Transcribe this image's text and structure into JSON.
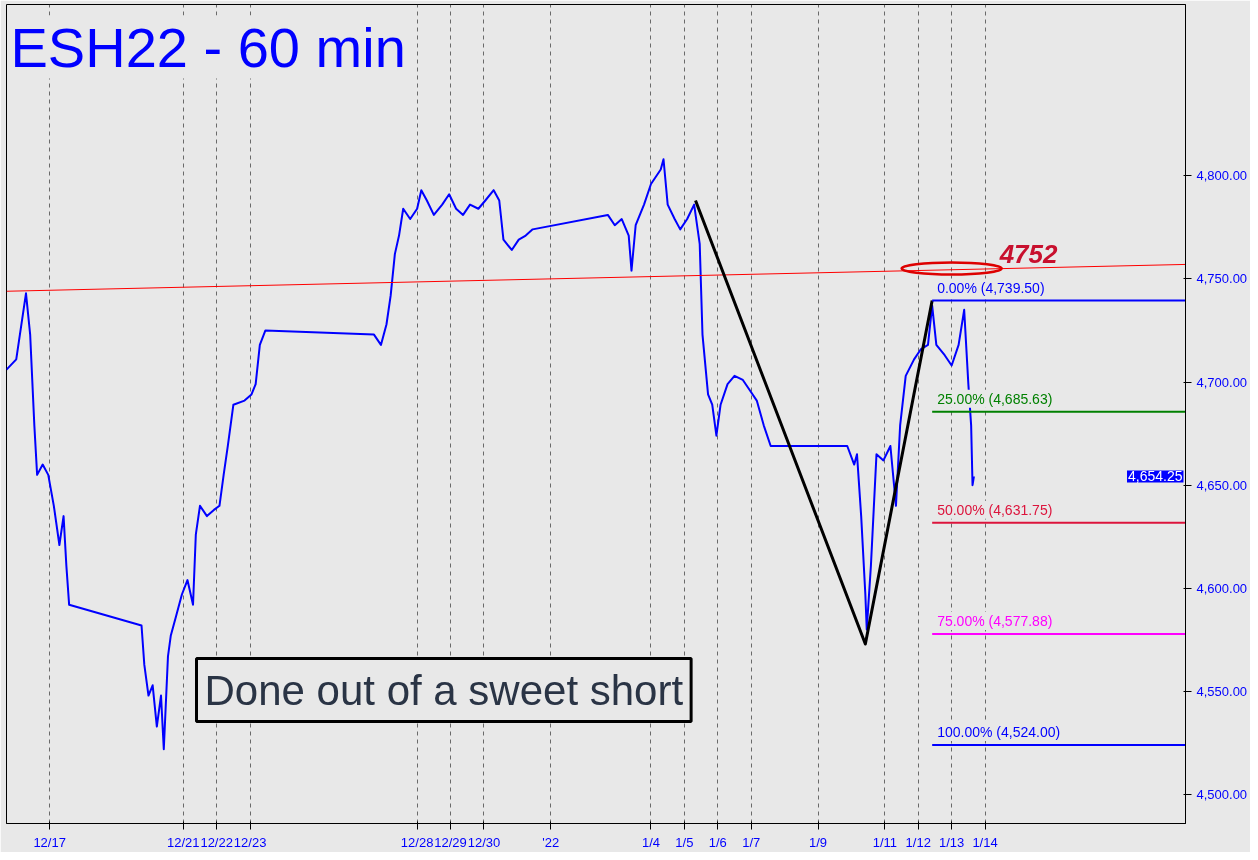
{
  "chart_data": {
    "type": "line",
    "title": "ESH22 - 60 min",
    "xlim": [
      "2021-12-15T17:00",
      "2022-01-20T00:00"
    ],
    "ylim": [
      4486,
      4883
    ],
    "xticks": [
      {
        "value": "2021-12-17",
        "label": "12/17"
      },
      {
        "value": "2021-12-21",
        "label": "12/21"
      },
      {
        "value": "2021-12-22",
        "label": "12/22"
      },
      {
        "value": "2021-12-23",
        "label": "12/23"
      },
      {
        "value": "2021-12-28",
        "label": "12/28"
      },
      {
        "value": "2021-12-29",
        "label": "12/29"
      },
      {
        "value": "2021-12-30",
        "label": "12/30"
      },
      {
        "value": "2022-01-01",
        "label": "'22"
      },
      {
        "value": "2022-01-04",
        "label": "1/4"
      },
      {
        "value": "2022-01-05",
        "label": "1/5"
      },
      {
        "value": "2022-01-06",
        "label": "1/6"
      },
      {
        "value": "2022-01-07",
        "label": "1/7"
      },
      {
        "value": "2022-01-09",
        "label": "1/9"
      },
      {
        "value": "2022-01-11",
        "label": "1/11"
      },
      {
        "value": "2022-01-12",
        "label": "1/12"
      },
      {
        "value": "2022-01-13",
        "label": "1/13"
      },
      {
        "value": "2022-01-14",
        "label": "1/14"
      }
    ],
    "yticks": [
      {
        "value": 4500,
        "label": "4,500.00"
      },
      {
        "value": 4550,
        "label": "4,550.00"
      },
      {
        "value": 4600,
        "label": "4,600.00"
      },
      {
        "value": 4650,
        "label": "4,650.00"
      },
      {
        "value": 4700,
        "label": "4,700.00"
      },
      {
        "value": 4750,
        "label": "4,750.00"
      },
      {
        "value": 4800,
        "label": "4,800.00"
      }
    ],
    "grid": "x",
    "line_style": "solid",
    "marker": "none",
    "series": [
      {
        "color": "#0000ff",
        "x": [
          "2021-12-15T17:00",
          "2021-12-16T00:00",
          "2021-12-16T07:00",
          "2021-12-16T10:00",
          "2021-12-16T13:00",
          "2021-12-16T15:00",
          "2021-12-16T19:00",
          "2021-12-16T23:00",
          "2021-12-17T03:00",
          "2021-12-17T07:00",
          "2021-12-17T10:00",
          "2021-12-17T12:00",
          "2021-12-17T14:00",
          "2021-12-19T18:00",
          "2021-12-19T20:00",
          "2021-12-19T23:00",
          "2021-12-20T02:00",
          "2021-12-20T05:00",
          "2021-12-20T08:00",
          "2021-12-20T10:00",
          "2021-12-20T13:00",
          "2021-12-20T15:00",
          "2021-12-20T19:00",
          "2021-12-20T23:00",
          "2021-12-21T03:00",
          "2021-12-21T07:00",
          "2021-12-21T09:00",
          "2021-12-21T12:00",
          "2021-12-21T17:00",
          "2021-12-21T22:00",
          "2021-12-22T02:00",
          "2021-12-22T05:00",
          "2021-12-22T08:00",
          "2021-12-22T12:00",
          "2021-12-22T20:00",
          "2021-12-23T01:00",
          "2021-12-23T04:00",
          "2021-12-23T07:00",
          "2021-12-23T11:00",
          "2021-12-26T17:00",
          "2021-12-26T22:00",
          "2021-12-27T02:00",
          "2021-12-27T05:00",
          "2021-12-27T08:00",
          "2021-12-27T11:00",
          "2021-12-27T14:00",
          "2021-12-27T19:00",
          "2021-12-28T00:00",
          "2021-12-28T03:00",
          "2021-12-28T07:00",
          "2021-12-28T12:00",
          "2021-12-28T18:00",
          "2021-12-28T23:00",
          "2021-12-29T04:00",
          "2021-12-29T09:00",
          "2021-12-29T14:00",
          "2021-12-29T20:00",
          "2021-12-30T01:00",
          "2021-12-30T07:00",
          "2021-12-30T11:00",
          "2021-12-30T14:00",
          "2021-12-30T20:00",
          "2021-12-31T01:00",
          "2021-12-31T06:00",
          "2021-12-31T11:00",
          "2022-01-02T17:00",
          "2022-01-02T22:00",
          "2022-01-03T03:00",
          "2022-01-03T08:00",
          "2022-01-03T10:00",
          "2022-01-03T13:00",
          "2022-01-03T19:00",
          "2022-01-04T00:00",
          "2022-01-04T07:00",
          "2022-01-04T09:00",
          "2022-01-04T12:00",
          "2022-01-04T17:00",
          "2022-01-04T21:00",
          "2022-01-05T02:00",
          "2022-01-05T07:00",
          "2022-01-05T11:00",
          "2022-01-05T13:00",
          "2022-01-05T17:00",
          "2022-01-05T20:00",
          "2022-01-05T23:00",
          "2022-01-06T02:00",
          "2022-01-06T07:00",
          "2022-01-06T12:00",
          "2022-01-06T18:00",
          "2022-01-06T23:00",
          "2022-01-07T04:00",
          "2022-01-07T09:00",
          "2022-01-07T14:00",
          "2022-01-09T21:00",
          "2022-01-10T02:00",
          "2022-01-10T04:00",
          "2022-01-10T07:00",
          "2022-01-10T10:00",
          "2022-01-10T11:00",
          "2022-01-10T14:00",
          "2022-01-10T18:00",
          "2022-01-10T23:00",
          "2022-01-11T04:00",
          "2022-01-11T08:00",
          "2022-01-11T11:00",
          "2022-01-11T15:00",
          "2022-01-11T21:00",
          "2022-01-12T02:00",
          "2022-01-12T07:00",
          "2022-01-12T10:00",
          "2022-01-12T13:00",
          "2022-01-12T19:00",
          "2022-01-13T00:00",
          "2022-01-13T05:00",
          "2022-01-13T09:00",
          "2022-01-13T12:00",
          "2022-01-13T14:00",
          "2022-01-13T15:00",
          "2022-01-13T16:00"
        ],
        "values": [
          4706,
          4711,
          4743,
          4723,
          4679,
          4655,
          4660,
          4655,
          4640,
          4621,
          4635,
          4611,
          4592,
          4582,
          4563,
          4548,
          4553,
          4533,
          4548,
          4522,
          4567,
          4577,
          4587,
          4597,
          4604,
          4592,
          4626,
          4640,
          4635,
          4638,
          4640,
          4655,
          4669,
          4689,
          4691,
          4694,
          4699,
          4718,
          4725,
          4723,
          4718,
          4728,
          4742,
          4762,
          4771,
          4784,
          4779,
          4784,
          4793,
          4788,
          4781,
          4786,
          4791,
          4784,
          4781,
          4786,
          4784,
          4788,
          4793,
          4788,
          4769,
          4764,
          4769,
          4771,
          4774,
          4781,
          4776,
          4779,
          4771,
          4754,
          4776,
          4786,
          4796,
          4803,
          4808,
          4786,
          4779,
          4774,
          4779,
          4786,
          4767,
          4723,
          4694,
          4689,
          4674,
          4689,
          4699,
          4703,
          4701,
          4696,
          4691,
          4679,
          4669,
          4669,
          4660,
          4665,
          4635,
          4597,
          4580,
          4611,
          4665,
          4662,
          4669,
          4640,
          4679,
          4703,
          4711,
          4716,
          4718,
          4737,
          4718,
          4713,
          4708,
          4718,
          4735,
          4699,
          4679,
          4650,
          4654.25
        ]
      },
      {
        "color": "#ff0000",
        "x": [
          "2021-12-15T17:00",
          "2022-01-20T00:00"
        ],
        "values": [
          4744,
          4757
        ]
      },
      {
        "color": "#000000",
        "x": [
          "2022-01-05T08:00",
          "2022-01-10T10:00",
          "2022-01-12T10:00"
        ],
        "values": [
          4788,
          4573,
          4739.5
        ]
      },
      {
        "color": "#0000ff",
        "x": [
          "2022-01-12T10:00",
          "2022-01-20T00:00"
        ],
        "values": [
          4739.5,
          4739.5
        ]
      },
      {
        "color": "#008000",
        "x": [
          "2022-01-12T10:00",
          "2022-01-20T00:00"
        ],
        "values": [
          4685.63,
          4685.63
        ]
      },
      {
        "color": "#dc143c",
        "x": [
          "2022-01-12T10:00",
          "2022-01-20T00:00"
        ],
        "values": [
          4631.75,
          4631.75
        ]
      },
      {
        "color": "#ff00ff",
        "x": [
          "2022-01-12T10:00",
          "2022-01-20T00:00"
        ],
        "values": [
          4577.88,
          4577.88
        ]
      },
      {
        "color": "#0000ff",
        "x": [
          "2022-01-12T10:00",
          "2022-01-20T00:00"
        ],
        "values": [
          4524,
          4524
        ]
      }
    ],
    "annotations": [
      {
        "text": "4752",
        "x": "2022-01-13T00:00",
        "y": 4755
      },
      {
        "text": "0.00% (4,739.50)",
        "x": "2022-01-12T10:00",
        "y": 4739.5
      },
      {
        "text": "25.00% (4,685.63)",
        "x": "2022-01-12T10:00",
        "y": 4685.63
      },
      {
        "text": "50.00% (4,631.75)",
        "x": "2022-01-12T10:00",
        "y": 4631.75
      },
      {
        "text": "75.00% (4,577.88)",
        "x": "2022-01-12T10:00",
        "y": 4577.88
      },
      {
        "text": "100.00% (4,524.00)",
        "x": "2022-01-12T10:00",
        "y": 4524
      },
      "4,654.25",
      "Done out of a sweet short"
    ]
  }
}
